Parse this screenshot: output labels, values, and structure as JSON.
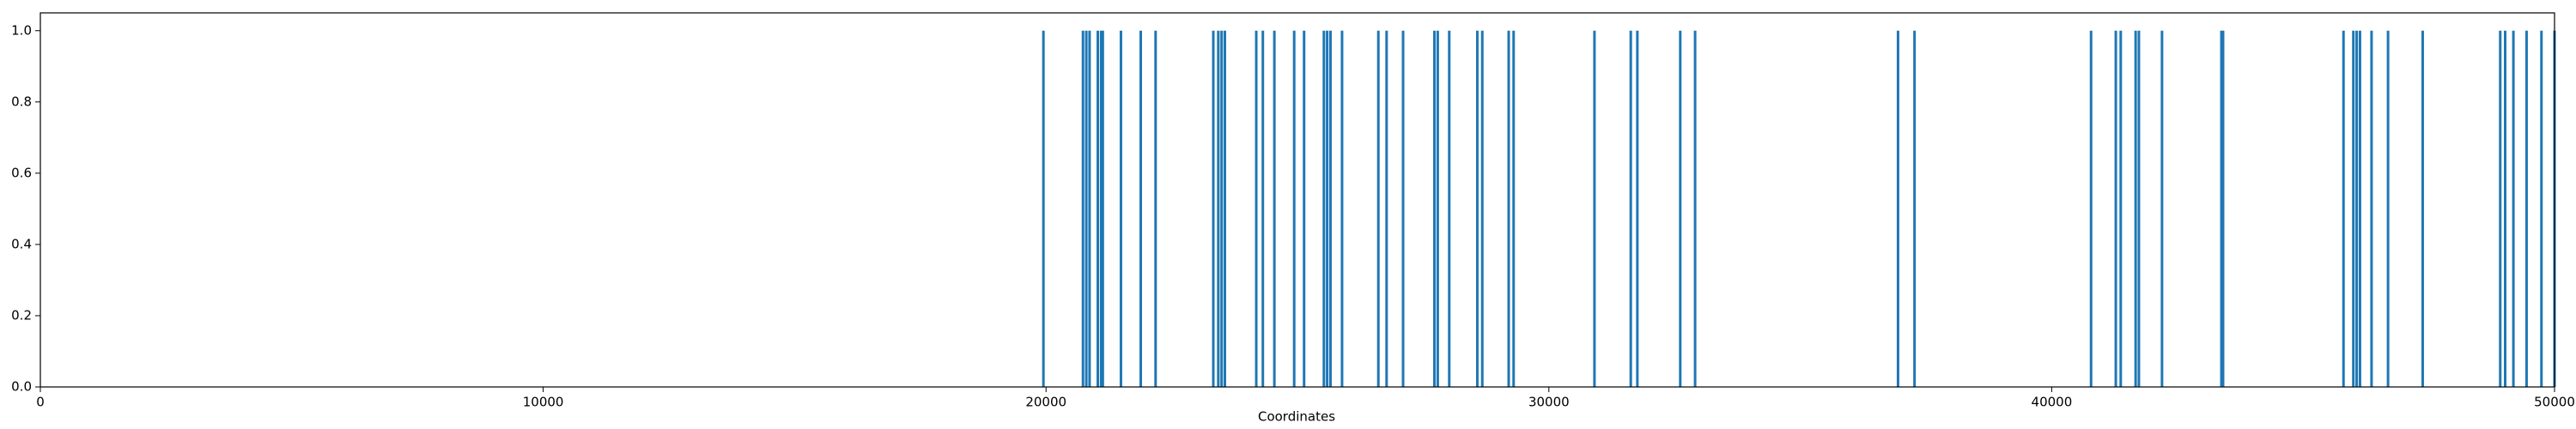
{
  "chart_data": {
    "type": "vlines",
    "xlabel": "Coordinates",
    "color": "#1f77b4",
    "x": [
      19948,
      20735,
      20801,
      20866,
      21030,
      21096,
      21129,
      21490,
      21884,
      22179,
      23327,
      23426,
      23492,
      23557,
      24181,
      24312,
      24541,
      24935,
      25132,
      25526,
      25591,
      25657,
      25887,
      26609,
      26773,
      27101,
      27724,
      27790,
      28019,
      28577,
      28676,
      29201,
      29299,
      30907,
      31629,
      31760,
      32613,
      32908,
      36944,
      37272,
      40783,
      41275,
      41373,
      41669,
      41734,
      42194,
      43375,
      43408,
      45803,
      45999,
      46065,
      46131,
      46361,
      46689,
      47378,
      48920,
      49018,
      49182,
      49444,
      49740,
      50000
    ],
    "values": [
      1,
      1,
      1,
      1,
      1,
      1,
      1,
      1,
      1,
      1,
      1,
      1,
      1,
      1,
      1,
      1,
      1,
      1,
      1,
      1,
      1,
      1,
      1,
      1,
      1,
      1,
      1,
      1,
      1,
      1,
      1,
      1,
      1,
      1,
      1,
      1,
      1,
      1,
      1,
      1,
      1,
      1,
      1,
      1,
      1,
      1,
      1,
      1,
      1,
      1,
      1,
      1,
      1,
      1,
      1,
      1,
      1,
      1,
      1,
      1,
      1
    ],
    "xlim": [
      0,
      50000
    ],
    "xticks": [
      0,
      10000,
      20000,
      30000,
      40000,
      50000
    ],
    "ylim": [
      0,
      1.05
    ],
    "yticks": [
      {
        "value": 0,
        "label": "0.0"
      },
      {
        "value": 0.2,
        "label": "0.2"
      },
      {
        "value": 0.4,
        "label": "0.4"
      },
      {
        "value": 0.6,
        "label": "0.6"
      },
      {
        "value": 0.8,
        "label": "0.8"
      },
      {
        "value": 1,
        "label": "1.0"
      }
    ]
  }
}
